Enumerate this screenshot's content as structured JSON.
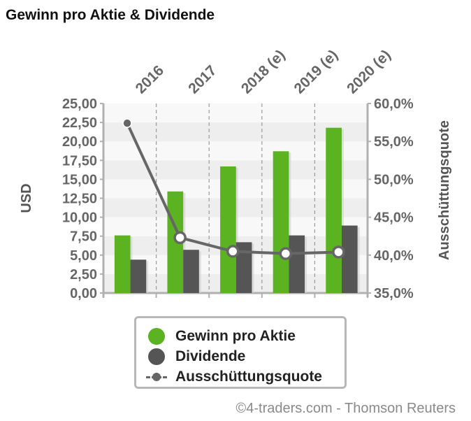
{
  "chart_data": {
    "type": "bar",
    "title": "Gewinn pro Aktie & Dividende",
    "categories": [
      "2016",
      "2017",
      "2018 (e)",
      "2019 (e)",
      "2020 (e)"
    ],
    "series": [
      {
        "name": "Gewinn pro Aktie",
        "axis": "left",
        "type": "bar",
        "color": "#5cb321",
        "values": [
          7.6,
          13.4,
          16.7,
          18.7,
          21.8
        ]
      },
      {
        "name": "Dividende",
        "axis": "left",
        "type": "bar",
        "color": "#555555",
        "values": [
          4.4,
          5.7,
          6.7,
          7.6,
          8.9
        ]
      },
      {
        "name": "Ausschüttungsquote",
        "axis": "right",
        "type": "line",
        "color": "#666666",
        "values": [
          57.4,
          42.3,
          40.5,
          40.2,
          40.4
        ]
      }
    ],
    "ylabel": "USD",
    "ylim": [
      0,
      25
    ],
    "yticks": [
      "0,00",
      "2,50",
      "5,00",
      "7,50",
      "10,00",
      "12,50",
      "15,00",
      "17,50",
      "20,00",
      "22,50",
      "25,00"
    ],
    "y2label": "Ausschüttungsquote",
    "y2lim": [
      35,
      60
    ],
    "y2ticks": [
      "35,0%",
      "40,0%",
      "45,0%",
      "50,0%",
      "55,0%",
      "60,0%"
    ],
    "legend_position": "bottom",
    "grid": true
  },
  "legend": {
    "eps_label": "Gewinn pro Aktie",
    "dividend_label": "Dividende",
    "payout_label": "Ausschüttungsquote"
  },
  "copyright": "©4-traders.com - Thomson Reuters"
}
